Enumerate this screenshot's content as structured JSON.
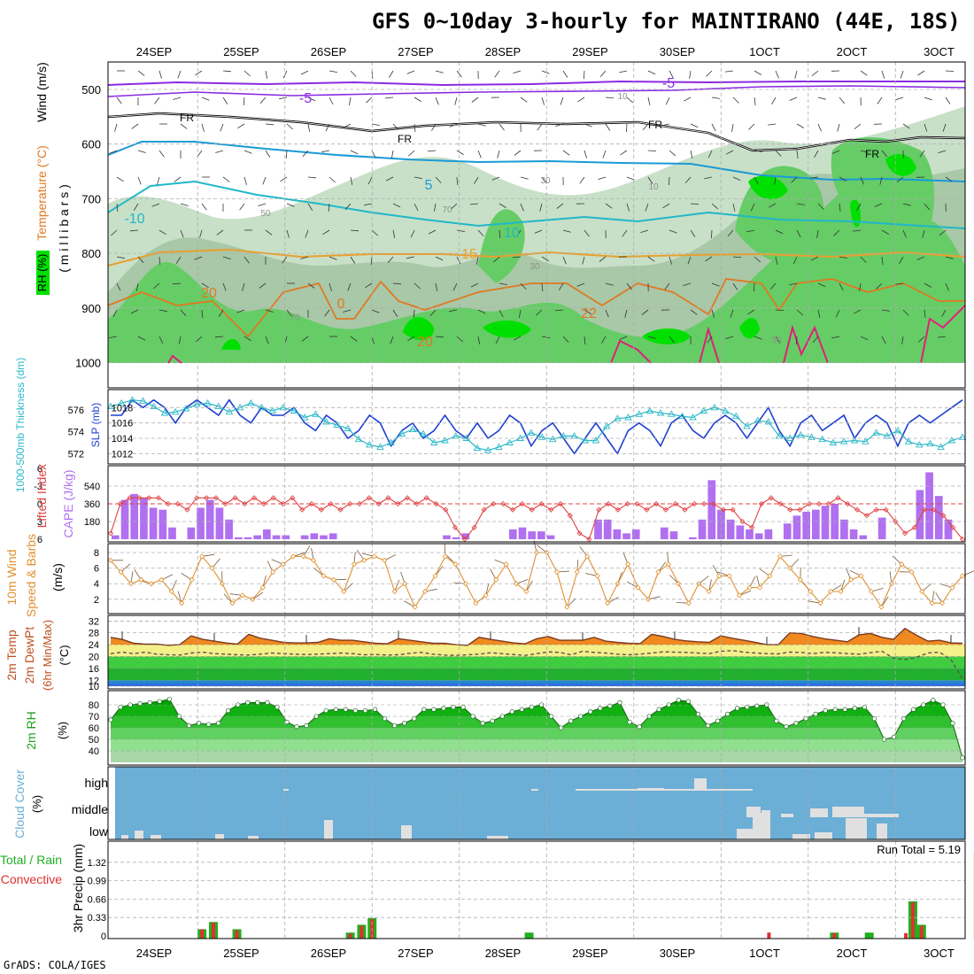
{
  "title": "GFS 0~10day 3-hourly for MAINTIRANO (44E, 18S)",
  "footer": "GrADS: COLA/IGES",
  "colors": {
    "rh_green": "#00e000",
    "rh_mid": "#66cc66",
    "rh_light": "#c8e0c8",
    "temperature": "#e07820",
    "wind_label": "#000000",
    "temp_cold": "#1a9ad6",
    "slp": "#1f3fd0",
    "thickness": "#2ab8c8",
    "cape": "#b070f0",
    "lifted": "#e04040",
    "wind10m": "#e09030",
    "temp2m": "#f08a20",
    "dewpt": "#40c040",
    "cloud_bg": "#6baed6",
    "cloud": "#e0e0e0",
    "precip_total": "#20b020",
    "precip_conv": "#e03030"
  },
  "time_axis": {
    "top_labels": [
      "24SEP",
      "25SEP",
      "26SEP",
      "27SEP",
      "28SEP",
      "29SEP",
      "30SEP",
      "1OCT",
      "2OCT",
      "3OCT"
    ],
    "top_labels_display": [
      "24SEP",
      "25SEP",
      "26SEP",
      "27SEP",
      "28SEP",
      "29SEP",
      "30SEP",
      "1OCT",
      "2OCT",
      "3OCT"
    ],
    "bottom_labels": [
      "24SEP",
      "25SEP",
      "26SEP",
      "27SEP",
      "28SEP",
      "29SEP",
      "30SEP",
      "1OCT",
      "2OCT",
      "3OCT"
    ]
  },
  "panel_labels": {
    "p1": {
      "rh": "RH (%)",
      "temp": "Temperature (°C)",
      "wind": "Wind (m/s)",
      "units": "( m i l l i b a r s )"
    },
    "p2": {
      "thickness": "1000-500mb Thickness (dm)",
      "slp": "SLP (mb)"
    },
    "p3": {
      "lifted": "Lifted Index",
      "cape": "CAPE (J/kg)"
    },
    "p4": {
      "wind": "10m Wind",
      "speed": "Speed & Barbs",
      "units": "(m/s)"
    },
    "p5": {
      "temp": "2m Temp",
      "dewpt": "2m DewPt",
      "minmax": "(6hr Min/Max)",
      "units": "(°C)"
    },
    "p6": {
      "rh": "2m RH",
      "units": "(%)"
    },
    "p7": {
      "cloud": "Cloud Cover",
      "units": "(%)"
    },
    "p8": {
      "total": "Total / Rain",
      "conv": "Convective",
      "precip": "3hr Precip (mm)",
      "run_total": "Run Total = 5.19"
    }
  },
  "chart_data": [
    {
      "type": "heatmap",
      "name": "vertical_profile",
      "ylabel": "millibars",
      "y_ticks": [
        "500",
        "600",
        "700",
        "800",
        "900",
        "1000"
      ],
      "ylim": [
        1000,
        450
      ],
      "contour_labels": {
        "temperature": [
          "-5",
          "-10",
          "5",
          "10",
          "15",
          "20",
          "0",
          "22",
          "20",
          "-5"
        ],
        "freezing": "FR",
        "rh": [
          "10",
          "30",
          "50",
          "70"
        ]
      }
    },
    {
      "type": "line",
      "name": "slp_thickness",
      "left_ticks": [
        "576",
        "574",
        "572"
      ],
      "right_ticks": [
        "1018",
        "1016",
        "1014",
        "1012"
      ],
      "series": [
        {
          "name": "SLP (mb)",
          "ylim": [
            1011,
            1020
          ],
          "values": [
            1017,
            1017,
            1019,
            1018,
            1019,
            1018,
            1016,
            1018,
            1019,
            1018,
            1017,
            1019,
            1017,
            1016,
            1018,
            1017,
            1017,
            1018,
            1016,
            1015,
            1017,
            1016,
            1014,
            1015,
            1017,
            1016,
            1013,
            1015,
            1016,
            1014,
            1015,
            1017,
            1015,
            1014,
            1016,
            1014,
            1015,
            1017,
            1016,
            1013,
            1015,
            1016,
            1014,
            1012,
            1014,
            1016,
            1014,
            1012,
            1015,
            1016,
            1015,
            1013,
            1016,
            1017,
            1015,
            1014,
            1016,
            1017,
            1016,
            1014,
            1016,
            1018,
            1015,
            1013,
            1016,
            1017,
            1015,
            1016,
            1017,
            1014,
            1016,
            1017,
            1016,
            1013,
            1016,
            1017,
            1016,
            1017,
            1018,
            1019
          ]
        },
        {
          "name": "1000-500mb Thickness (dm)",
          "ylim": [
            571.3,
            577.6
          ],
          "values": [
            576.3,
            576.6,
            576.9,
            576.8,
            576.3,
            575.7,
            575.8,
            576.1,
            576.5,
            576.6,
            576.3,
            575.8,
            576.2,
            576.6,
            576.2,
            575.9,
            576.2,
            575.9,
            575.3,
            575.6,
            574.9,
            574.6,
            574.3,
            573.3,
            572.8,
            572.6,
            573.0,
            573.8,
            574.2,
            573.8,
            573.0,
            573.2,
            573.6,
            573.4,
            572.5,
            572.3,
            572.6,
            573.0,
            573.4,
            573.9,
            573.5,
            573.3,
            573.6,
            573.6,
            573.2,
            573.2,
            574.5,
            575.2,
            575.3,
            575.6,
            575.9,
            575.7,
            575.6,
            575.4,
            575.3,
            575.9,
            576.2,
            575.9,
            575.4,
            574.5,
            575.0,
            574.9,
            573.6,
            573.4,
            573.7,
            573.5,
            573.3,
            573.0,
            573.1,
            573.2,
            573.1,
            573.9,
            573.6,
            574.1,
            573.1,
            572.8,
            572.9,
            572.6,
            573.2,
            573.5
          ]
        }
      ]
    },
    {
      "type": "bar",
      "name": "cape_lifted",
      "left_ticks": [
        "-3",
        "0",
        "3",
        "6"
      ],
      "right_ticks": [
        "540",
        "360",
        "180"
      ],
      "left_top_tick": "6",
      "series": [
        {
          "name": "CAPE (J/kg)",
          "ylim": [
            0,
            720
          ],
          "values": [
            40,
            400,
            460,
            420,
            320,
            300,
            120,
            0,
            120,
            320,
            400,
            320,
            200,
            20,
            20,
            40,
            100,
            40,
            40,
            0,
            40,
            60,
            40,
            60,
            0,
            0,
            0,
            0,
            0,
            0,
            0,
            0,
            0,
            0,
            0,
            40,
            20,
            60,
            0,
            0,
            0,
            0,
            100,
            120,
            80,
            80,
            40,
            0,
            0,
            0,
            0,
            200,
            200,
            100,
            60,
            100,
            0,
            0,
            120,
            80,
            0,
            20,
            200,
            600,
            300,
            200,
            140,
            100,
            60,
            100,
            0,
            160,
            240,
            280,
            300,
            340,
            360,
            200,
            100,
            40,
            0,
            220,
            0,
            0,
            0,
            500,
            680,
            440,
            200,
            0
          ]
        },
        {
          "name": "Lifted Index",
          "ylim": [
            -6,
            6
          ],
          "values": [
            5,
            0,
            -1,
            -1,
            -1,
            -1,
            0,
            0,
            1,
            -1,
            -1,
            -1,
            0,
            -1,
            0,
            -1,
            0,
            -1,
            0,
            -1,
            1,
            0,
            1,
            0,
            1,
            0,
            0,
            -1,
            0,
            -1,
            0,
            -1,
            0,
            -1,
            0,
            1,
            4,
            6,
            4,
            1,
            0,
            0,
            1,
            0,
            1,
            0,
            1,
            0,
            2,
            5,
            6,
            1,
            0,
            1,
            0,
            0,
            1,
            0,
            1,
            0,
            1,
            0,
            0,
            0,
            1,
            1,
            3,
            4,
            0,
            -1,
            0,
            1,
            1,
            0,
            0,
            0,
            -1,
            0,
            1,
            2,
            1,
            1,
            3,
            5,
            4,
            1,
            1,
            2,
            4,
            6
          ]
        }
      ]
    },
    {
      "type": "line",
      "name": "wind10m",
      "y_ticks": [
        "8",
        "6",
        "4",
        "2"
      ],
      "ylim": [
        0.5,
        8.8
      ],
      "series": [
        {
          "name": "10m Wind Speed (m/s)",
          "values": [
            7.0,
            5.5,
            4.0,
            4.5,
            4.0,
            4.5,
            3.0,
            1.5,
            4.5,
            7.5,
            6.0,
            4.0,
            1.5,
            2.5,
            2.0,
            3.5,
            5.5,
            6.5,
            7.5,
            7.5,
            7.0,
            5.0,
            4.5,
            3.0,
            6.5,
            7.0,
            7.5,
            7.0,
            3.0,
            4.0,
            1.0,
            3.0,
            5.0,
            7.5,
            6.5,
            4.0,
            1.5,
            2.5,
            4.5,
            6.5,
            4.0,
            3.0,
            8.0,
            8.0,
            5.5,
            1.0,
            5.5,
            7.5,
            5.0,
            1.5,
            4.0,
            6.5,
            3.5,
            2.0,
            5.5,
            6.5,
            4.0,
            1.5,
            4.0,
            3.0,
            5.0,
            5.0,
            2.5,
            3.5,
            3.5,
            5.0,
            7.5,
            6.0,
            4.5,
            3.0,
            1.5,
            3.0,
            3.0,
            4.5,
            5.0,
            3.0,
            1.0,
            4.0,
            6.5,
            5.5,
            3.0,
            1.5,
            1.5,
            3.5,
            5.0
          ]
        }
      ]
    },
    {
      "type": "area",
      "name": "temp2m",
      "y_ticks": [
        "32",
        "28",
        "24",
        "20",
        "16",
        "12",
        "10"
      ],
      "ylim": [
        10,
        33
      ],
      "series": [
        {
          "name": "2m Temp (°C)",
          "values": [
            26.5,
            25.8,
            24.5,
            24.2,
            24.2,
            23.8,
            24.0,
            27.0,
            25.8,
            25.2,
            24.6,
            24.2,
            27.5,
            26.2,
            25.5,
            24.8,
            24.6,
            24.6,
            24.8,
            26.0,
            25.5,
            25.5,
            25.0,
            24.5,
            24.3,
            26.0,
            25.5,
            25.0,
            24.5,
            24.5,
            24.0,
            23.8,
            26.5,
            25.8,
            25.2,
            24.6,
            24.3,
            26.0,
            26.8,
            25.5,
            25.5,
            25.5,
            26.5,
            25.2,
            24.8,
            24.5,
            24.4,
            27.5,
            26.8,
            25.8,
            25.3,
            25.0,
            24.8,
            27.0,
            26.2,
            25.5,
            24.8,
            24.0,
            24.0,
            28.0,
            27.8,
            26.8,
            26.0,
            25.5,
            25.0,
            27.3,
            27.8,
            26.5,
            25.8,
            29.5,
            27.2,
            25.2,
            25.5,
            24.6,
            24.5
          ]
        },
        {
          "name": "2m DewPt (°C)",
          "values": [
            21.0,
            21.5,
            21.0,
            21.5,
            20.8,
            20.6,
            20.5,
            21.2,
            21.5,
            21.0,
            20.8,
            20.6,
            20.5,
            20.8,
            21.2,
            21.0,
            20.8,
            20.7,
            20.8,
            21.0,
            21.2,
            21.0,
            20.6,
            20.7,
            20.5,
            20.6,
            21.1,
            21.4,
            20.8,
            20.5,
            20.4,
            20.6,
            20.8,
            21.3,
            21.0,
            20.7,
            20.4,
            21.0,
            21.6,
            21.4,
            20.6,
            21.8,
            21.4,
            21.2,
            20.8,
            20.6,
            20.8,
            21.2,
            21.6,
            21.5,
            21.4,
            21.2,
            21.0,
            21.8,
            22.0,
            21.5,
            21.2,
            21.0,
            20.9,
            21.5,
            21.4,
            21.0,
            21.4,
            21.3,
            21.0,
            20.8,
            21.3,
            21.8,
            19.5,
            19.0,
            19.8,
            21.2,
            21.5,
            19.0,
            12.5
          ]
        }
      ]
    },
    {
      "type": "area",
      "name": "rh2m",
      "y_ticks": [
        "80",
        "70",
        "60",
        "50",
        "40"
      ],
      "ylim": [
        30,
        90
      ],
      "series": [
        {
          "name": "2m RH (%)",
          "values": [
            67,
            78,
            80,
            81,
            82,
            83,
            85,
            70,
            62,
            64,
            63,
            64,
            75,
            80,
            82,
            82,
            82,
            78,
            65,
            61,
            62,
            70,
            75,
            76,
            76,
            75,
            75,
            76,
            68,
            62,
            64,
            68,
            76,
            76,
            77,
            78,
            78,
            70,
            64,
            66,
            70,
            74,
            76,
            78,
            80,
            70,
            60,
            66,
            70,
            74,
            77,
            79,
            82,
            65,
            61,
            70,
            76,
            80,
            84,
            83,
            72,
            62,
            66,
            72,
            77,
            78,
            79,
            80,
            66,
            61,
            64,
            68,
            72,
            75,
            76,
            76,
            77,
            78,
            68,
            50,
            52,
            68,
            76,
            80,
            84,
            80,
            64,
            34
          ]
        }
      ]
    },
    {
      "type": "heatmap",
      "name": "cloud_cover",
      "levels": [
        "high",
        "middle",
        "low"
      ],
      "value_scale": "percent"
    },
    {
      "type": "bar",
      "name": "precip",
      "y_ticks": [
        "1.32",
        "0.99",
        "0.66",
        "0.33",
        "0"
      ],
      "ylim": [
        0,
        1.65
      ],
      "run_total": 5.19,
      "series": [
        {
          "name": "Total / Rain",
          "x_days": [
            0.55,
            0.68,
            0.95,
            2.25,
            2.38,
            2.5,
            4.3,
            7.8,
            8.2,
            8.7,
            8.8,
            9.45,
            9.55,
            9.7
          ],
          "values": [
            0.12,
            0.25,
            0.12,
            0.06,
            0.2,
            0.32,
            0.06,
            0.06,
            0.06,
            0.62,
            0.2,
            1.48,
            1.48,
            0.06
          ]
        },
        {
          "name": "Convective",
          "x_days": [
            0.55,
            0.68,
            0.95,
            2.25,
            2.38,
            2.5,
            7.05,
            7.8,
            8.62,
            8.7,
            8.8,
            9.45,
            9.55
          ],
          "values": [
            0.12,
            0.24,
            0.1,
            0.04,
            0.18,
            0.3,
            0.06,
            0.05,
            0.05,
            0.6,
            0.18,
            1.45,
            1.45
          ]
        }
      ]
    }
  ]
}
